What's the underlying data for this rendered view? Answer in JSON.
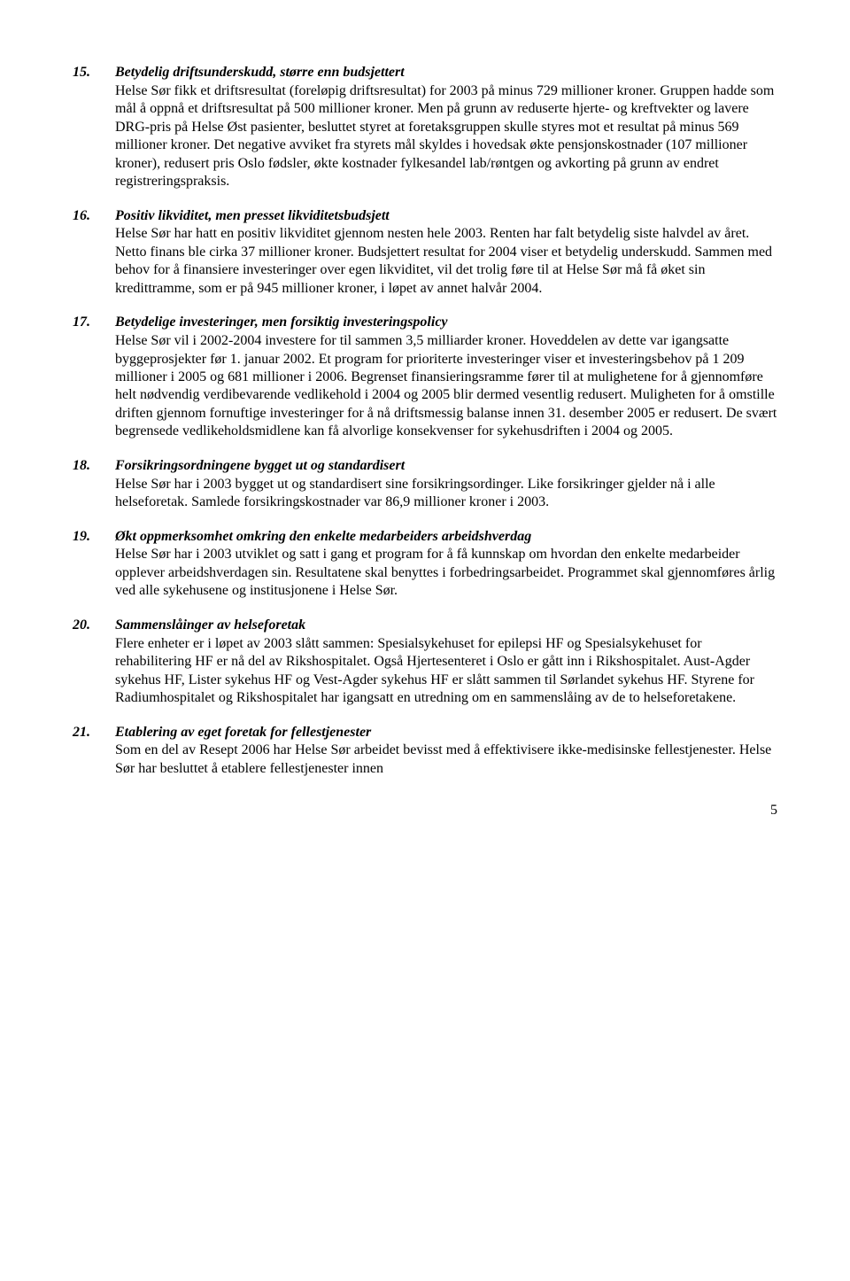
{
  "items": [
    {
      "num": "15.",
      "heading": "Betydelig driftsunderskudd, større enn budsjettert",
      "body": "Helse Sør fikk et driftsresultat (foreløpig driftsresultat) for 2003 på minus 729 millioner kroner. Gruppen hadde som mål å oppnå et driftsresultat på 500 millioner kroner. Men på grunn av reduserte hjerte- og kreftvekter og lavere DRG-pris på Helse Øst pasienter, besluttet styret at foretaksgruppen skulle styres mot et resultat på minus 569 millioner kroner. Det negative avviket fra styrets mål skyldes i hovedsak økte pensjonskostnader (107 millioner kroner), redusert pris Oslo fødsler, økte kostnader fylkesandel lab/røntgen og avkorting på grunn av endret registreringspraksis."
    },
    {
      "num": "16.",
      "heading": "Positiv likviditet, men presset likviditetsbudsjett",
      "body": "Helse Sør har hatt en positiv likviditet gjennom nesten hele 2003. Renten har falt betydelig siste halvdel av året. Netto finans ble cirka 37 millioner kroner. Budsjettert resultat for 2004 viser et betydelig underskudd. Sammen med behov for å finansiere investeringer over egen likviditet, vil det trolig føre til at Helse Sør må få øket sin kredittramme, som er på 945 millioner kroner, i løpet av annet halvår 2004."
    },
    {
      "num": "17.",
      "heading": "Betydelige investeringer, men forsiktig investeringspolicy",
      "body": "Helse Sør vil i 2002-2004 investere for til sammen 3,5 milliarder kroner. Hoveddelen av dette var igangsatte byggeprosjekter før 1. januar 2002. Et program for prioriterte investeringer viser et investeringsbehov på 1 209 millioner i 2005 og 681 millioner i 2006. Begrenset finansieringsramme fører til at mulighetene for å gjennomføre helt nødvendig verdibevarende vedlikehold i 2004 og 2005 blir dermed vesentlig redusert. Muligheten for å omstille driften gjennom fornuftige investeringer for å nå driftsmessig balanse innen 31. desember 2005 er redusert.  De svært begrensede vedlikeholdsmidlene kan få alvorlige konsekvenser for sykehusdriften i 2004 og 2005."
    },
    {
      "num": "18.",
      "heading": "Forsikringsordningene bygget ut og standardisert",
      "body": "Helse Sør har i 2003 bygget ut og standardisert sine forsikringsordinger. Like forsikringer gjelder nå i alle helseforetak. Samlede forsikringskostnader var 86,9 millioner kroner i 2003."
    },
    {
      "num": "19.",
      "heading": "Økt oppmerksomhet omkring den enkelte medarbeiders arbeidshverdag",
      "body": "Helse Sør har i 2003 utviklet og satt i gang et program for å få kunnskap om hvordan den enkelte medarbeider opplever arbeidshverdagen sin. Resultatene skal benyttes i forbedringsarbeidet. Programmet skal gjennomføres årlig ved alle sykehusene og institusjonene i Helse Sør."
    },
    {
      "num": "20.",
      "heading": "Sammenslåinger av helseforetak",
      "body": "Flere enheter er i løpet av 2003 slått sammen: Spesialsykehuset for epilepsi HF og Spesialsykehuset for rehabilitering HF er nå del av Rikshospitalet. Også Hjertesenteret i Oslo er gått inn i Rikshospitalet. Aust-Agder sykehus HF, Lister sykehus HF og Vest-Agder sykehus HF er slått sammen til Sørlandet sykehus HF. Styrene for Radiumhospitalet og Rikshospitalet har igangsatt en utredning om en sammenslåing av de to helseforetakene."
    },
    {
      "num": "21.",
      "heading": "Etablering av eget foretak for fellestjenester",
      "body": "Som en del av Resept 2006 har Helse Sør arbeidet bevisst med å effektivisere ikke-medisinske fellestjenester. Helse Sør har besluttet å etablere fellestjenester innen"
    }
  ],
  "pageNumber": "5"
}
